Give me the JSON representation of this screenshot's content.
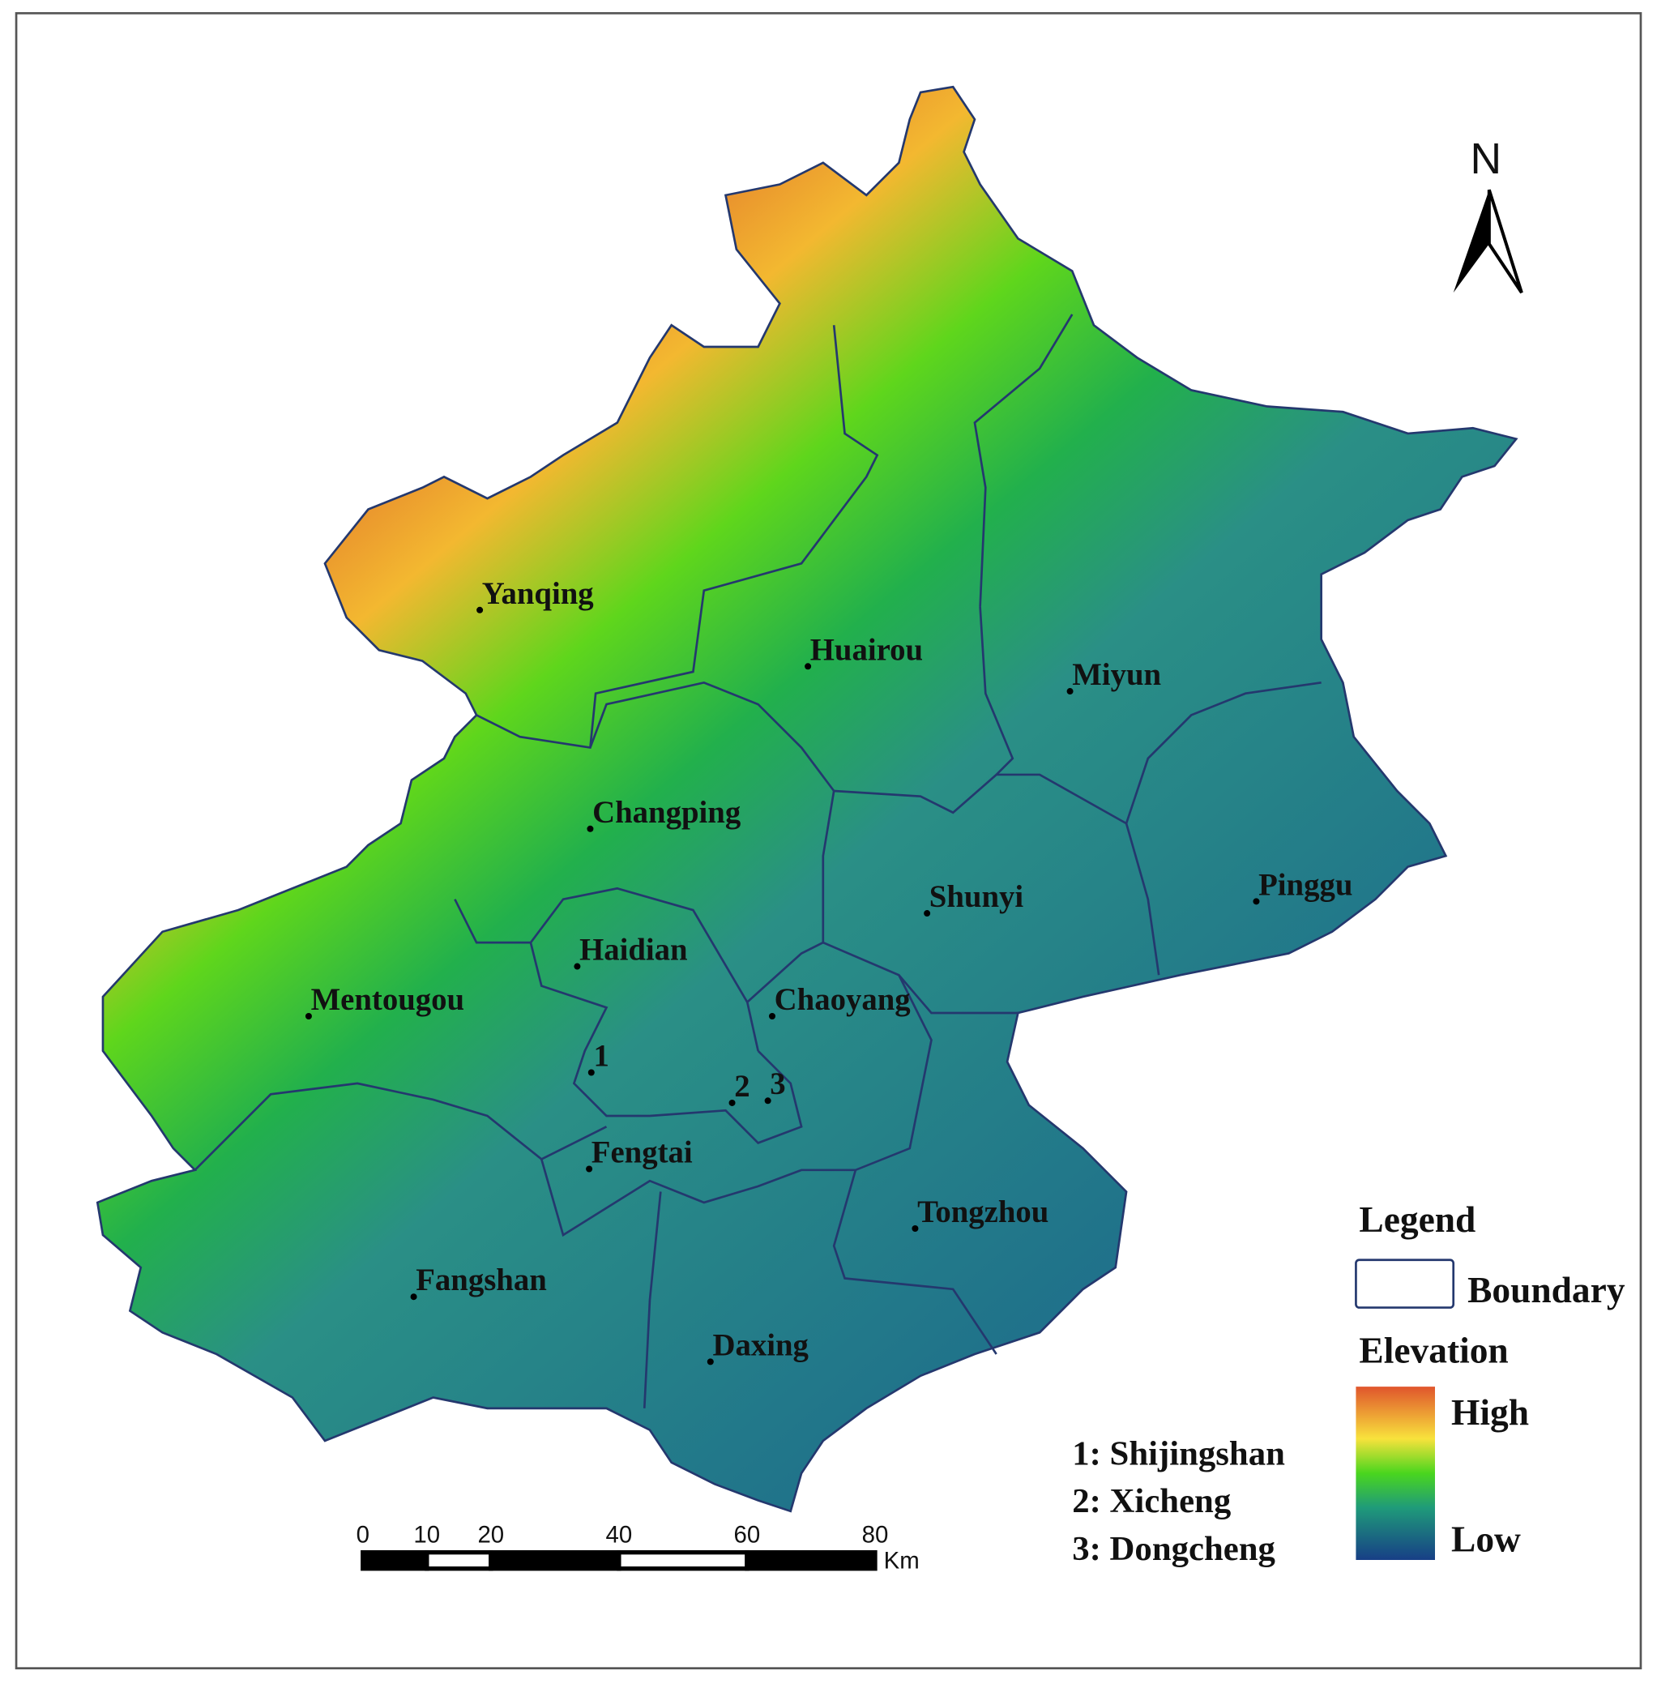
{
  "north": "N",
  "districts": [
    {
      "name": "Yanqing"
    },
    {
      "name": "Huairou"
    },
    {
      "name": "Miyun"
    },
    {
      "name": "Changping"
    },
    {
      "name": "Pinggu"
    },
    {
      "name": "Shunyi"
    },
    {
      "name": "Haidian"
    },
    {
      "name": "Mentougou"
    },
    {
      "name": "Chaoyang"
    },
    {
      "name": "1"
    },
    {
      "name": "2"
    },
    {
      "name": "3"
    },
    {
      "name": "Fengtai"
    },
    {
      "name": "Tongzhou"
    },
    {
      "name": "Fangshan"
    },
    {
      "name": "Daxing"
    }
  ],
  "key": [
    "1: Shijingshan",
    "2: Xicheng",
    "3: Dongcheng"
  ],
  "legend": {
    "title": "Legend",
    "boundary": "Boundary",
    "elevation": "Elevation",
    "high": "High",
    "low": "Low"
  },
  "scale": {
    "ticks": [
      0,
      10,
      20,
      40,
      60,
      80
    ],
    "unit": "Km"
  }
}
